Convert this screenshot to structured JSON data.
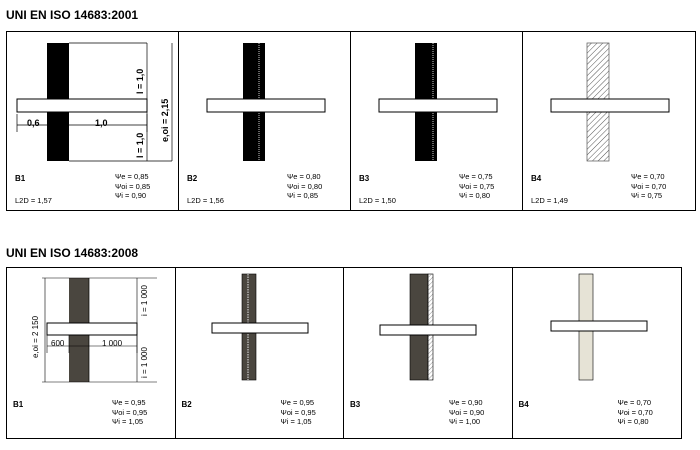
{
  "sections": [
    {
      "title": "UNI EN ISO 14683:2001",
      "cells": [
        {
          "label": "B1",
          "l2d": "L2D = 1,57",
          "psi": [
            "Ψe = 0,85",
            "Ψoi = 0,85",
            "Ψi = 0,90"
          ]
        },
        {
          "label": "B2",
          "l2d": "L2D = 1,56",
          "psi": [
            "Ψe = 0,80",
            "Ψoi = 0,80",
            "Ψi = 0,85"
          ]
        },
        {
          "label": "B3",
          "l2d": "L2D = 1,50",
          "psi": [
            "Ψe = 0,75",
            "Ψoi = 0,75",
            "Ψi = 0,80"
          ]
        },
        {
          "label": "B4",
          "l2d": "L2D = 1,49",
          "psi": [
            "Ψe = 0,70",
            "Ψoi = 0,70",
            "Ψi = 0,75"
          ]
        }
      ],
      "dims": {
        "left": "0,6",
        "right": "1,0",
        "top": "l = 1,0",
        "bottom": "l = 1,0",
        "total": "e,oi = 2,15"
      }
    },
    {
      "title": "UNI EN ISO 14683:2008",
      "cells": [
        {
          "label": "B1",
          "psi": [
            "Ψe = 0,95",
            "Ψoi = 0,95",
            "Ψi = 1,05"
          ]
        },
        {
          "label": "B2",
          "psi": [
            "Ψe = 0,95",
            "Ψoi = 0,95",
            "Ψi = 1,05"
          ]
        },
        {
          "label": "B3",
          "psi": [
            "Ψe = 0,90",
            "Ψoi = 0,90",
            "Ψi = 1,00"
          ]
        },
        {
          "label": "B4",
          "psi": [
            "Ψe = 0,70",
            "Ψoi = 0,70",
            "Ψi = 0,80"
          ]
        }
      ],
      "dims": {
        "left": "600",
        "right": "1 000",
        "top": "i = 1 000",
        "bottom": "i = 1 000",
        "total": "e,oi = 2 150"
      }
    }
  ]
}
